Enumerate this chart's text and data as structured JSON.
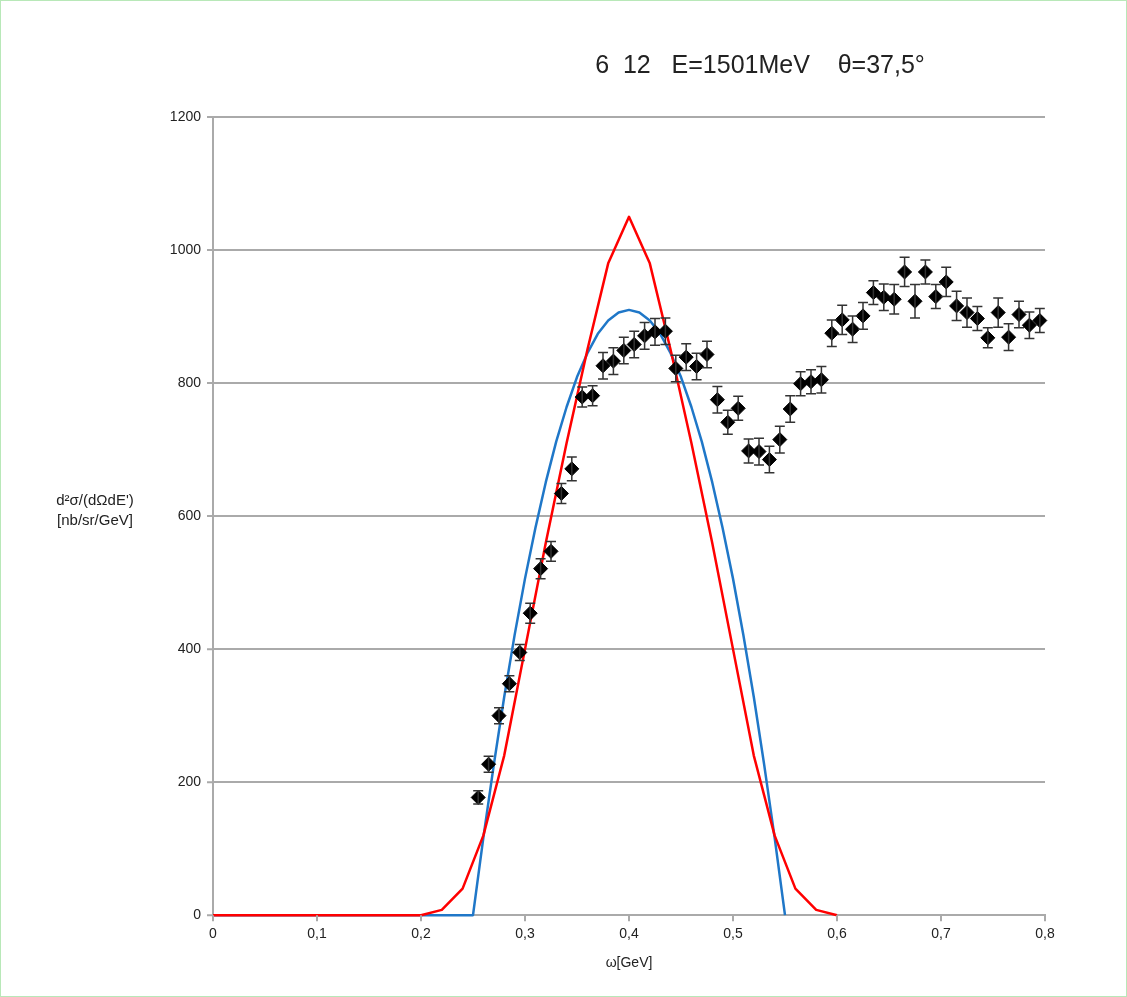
{
  "chart_data": {
    "type": "scatter",
    "title": "6  12   E=1501MeV    θ=37,5°",
    "xlabel": "ω[GeV]",
    "ylabel": "d²σ/(dΩdE') [nb/sr/GeV]",
    "xlim": [
      0,
      0.8
    ],
    "xticks": [
      0,
      {
        "value": 0.1,
        "label": "0,1"
      },
      {
        "value": 0.2,
        "label": "0,2"
      },
      {
        "value": 0.3,
        "label": "0,3"
      },
      {
        "value": 0.4,
        "label": "0,4"
      },
      {
        "value": 0.5,
        "label": "0,5"
      },
      {
        "value": 0.6,
        "label": "0,6"
      },
      {
        "value": 0.7,
        "label": "0,7"
      },
      {
        "value": 0.8,
        "label": "0,8"
      }
    ],
    "ylim": [
      0,
      1200
    ],
    "yticks": [
      0,
      200,
      400,
      600,
      800,
      1000,
      1200
    ],
    "grid": "y",
    "legend": false,
    "series": [
      {
        "type": "line",
        "color": "#ff0000",
        "marker": "none",
        "x": [
          0,
          0.2,
          0.22,
          0.24,
          0.26,
          0.28,
          0.3,
          0.32,
          0.34,
          0.36,
          0.38,
          0.4,
          0.42,
          0.44,
          0.46,
          0.48,
          0.5,
          0.52,
          0.54,
          0.56,
          0.58,
          0.6
        ],
        "values": [
          0,
          0,
          8,
          40,
          120,
          240,
          400,
          560,
          710,
          850,
          980,
          1050,
          980,
          850,
          710,
          560,
          400,
          240,
          120,
          40,
          8,
          0
        ]
      },
      {
        "type": "line",
        "color": "#1f77c8",
        "marker": "none",
        "x": [
          0,
          0.25,
          0.26,
          0.27,
          0.28,
          0.29,
          0.3,
          0.31,
          0.32,
          0.33,
          0.34,
          0.35,
          0.36,
          0.37,
          0.38,
          0.39,
          0.4,
          0.41,
          0.42,
          0.43,
          0.44,
          0.45,
          0.46,
          0.47,
          0.48,
          0.49,
          0.5,
          0.51,
          0.52,
          0.53,
          0.54,
          0.55
        ],
        "values": [
          0,
          0,
          117,
          226,
          328,
          421,
          506,
          582,
          651,
          712,
          764,
          809,
          845,
          874,
          894,
          906,
          910,
          906,
          894,
          874,
          845,
          809,
          764,
          712,
          651,
          582,
          506,
          421,
          328,
          226,
          117,
          0
        ]
      },
      {
        "type": "scatter",
        "color": "#000000",
        "marker": "diamond",
        "x": [
          0.255,
          0.265,
          0.275,
          0.285,
          0.295,
          0.305,
          0.315,
          0.325,
          0.335,
          0.345,
          0.355,
          0.365,
          0.375,
          0.385,
          0.395,
          0.405,
          0.415,
          0.425,
          0.435,
          0.445,
          0.455,
          0.465,
          0.475,
          0.485,
          0.495,
          0.505,
          0.515,
          0.525,
          0.535,
          0.545,
          0.555,
          0.565,
          0.575,
          0.585,
          0.595,
          0.605,
          0.615,
          0.625,
          0.635,
          0.645,
          0.655,
          0.665,
          0.675,
          0.685,
          0.695,
          0.705,
          0.715,
          0.725,
          0.735,
          0.745,
          0.755,
          0.765,
          0.775,
          0.785,
          0.795
        ],
        "values": [
          177,
          227,
          300,
          348,
          395,
          454,
          521,
          547,
          634,
          671,
          779,
          781,
          826,
          833,
          849,
          858,
          871,
          877,
          878,
          822,
          839,
          825,
          843,
          775,
          741,
          762,
          698,
          697,
          685,
          715,
          761,
          799,
          802,
          805,
          875,
          895,
          881,
          901,
          936,
          929,
          926,
          967,
          923,
          967,
          930,
          952,
          916,
          906,
          897,
          868,
          906,
          869,
          903,
          887,
          894
        ],
        "errors": [
          10,
          12,
          12,
          12,
          12,
          15,
          15,
          15,
          15,
          18,
          15,
          15,
          20,
          20,
          20,
          20,
          20,
          20,
          20,
          20,
          20,
          20,
          20,
          20,
          18,
          18,
          18,
          20,
          20,
          20,
          20,
          18,
          18,
          20,
          20,
          22,
          20,
          20,
          18,
          20,
          22,
          22,
          25,
          18,
          18,
          22,
          22,
          22,
          18,
          15,
          22,
          20,
          20,
          20,
          18
        ]
      }
    ]
  }
}
